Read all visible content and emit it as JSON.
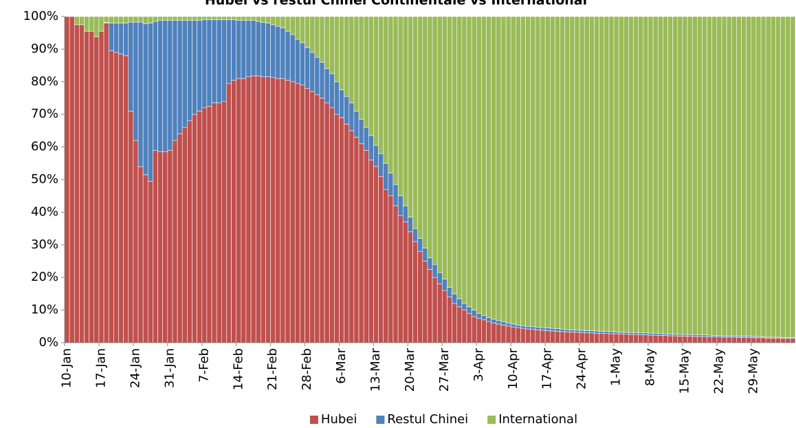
{
  "chart_data": {
    "type": "stacked_bar_100",
    "title": "Hubei vs restul Chinei Continentale vs International",
    "categories": [
      "10-Jan",
      null,
      null,
      null,
      null,
      null,
      null,
      "17-Jan",
      null,
      null,
      null,
      null,
      null,
      null,
      "24-Jan",
      null,
      null,
      null,
      null,
      null,
      null,
      "31-Jan",
      null,
      null,
      null,
      null,
      null,
      null,
      "7-Feb",
      null,
      null,
      null,
      null,
      null,
      null,
      "14-Feb",
      null,
      null,
      null,
      null,
      null,
      null,
      "21-Feb",
      null,
      null,
      null,
      null,
      null,
      null,
      "28-Feb",
      null,
      null,
      null,
      null,
      null,
      null,
      "6-Mar",
      null,
      null,
      null,
      null,
      null,
      null,
      "13-Mar",
      null,
      null,
      null,
      null,
      null,
      null,
      "20-Mar",
      null,
      null,
      null,
      null,
      null,
      null,
      "27-Mar",
      null,
      null,
      null,
      null,
      null,
      null,
      "3-Apr",
      null,
      null,
      null,
      null,
      null,
      null,
      "10-Apr",
      null,
      null,
      null,
      null,
      null,
      null,
      "17-Apr",
      null,
      null,
      null,
      null,
      null,
      null,
      "24-Apr",
      null,
      null,
      null,
      null,
      null,
      null,
      "1-May",
      null,
      null,
      null,
      null,
      null,
      null,
      "8-May",
      null,
      null,
      null,
      null,
      null,
      null,
      "15-May",
      null,
      null,
      null,
      null,
      null,
      null,
      "22-May",
      null,
      null,
      null,
      null,
      null,
      null,
      "29-May",
      null,
      null,
      null,
      null,
      null,
      null,
      null,
      null
    ],
    "series": [
      {
        "name": "Hubei",
        "color": "#c0504d",
        "values": [
          100,
          100,
          97.5,
          97.5,
          95.5,
          95.5,
          93.8,
          95.5,
          98,
          89.5,
          89,
          88.5,
          88,
          71,
          62,
          54,
          51.5,
          49.5,
          59,
          58.5,
          58.5,
          59,
          62,
          64,
          66,
          68,
          70,
          71,
          72,
          72.5,
          73.5,
          73.5,
          74,
          79.5,
          80.5,
          81,
          81,
          81.5,
          81.8,
          81.8,
          81.5,
          81.5,
          81.3,
          81,
          81,
          80.5,
          80,
          79.5,
          79,
          78,
          77,
          76,
          75,
          73.5,
          72,
          70,
          69,
          67,
          65,
          63,
          61,
          59,
          56,
          54,
          51,
          47,
          45,
          42,
          39,
          37,
          34,
          31,
          28,
          25,
          22.5,
          20,
          18,
          16,
          14,
          12,
          11,
          10,
          9,
          8,
          7.5,
          7,
          6.5,
          6,
          5.7,
          5.4,
          5.1,
          4.8,
          4.6,
          4.4,
          4.2,
          4.1,
          3.9,
          3.8,
          3.7,
          3.6,
          3.5,
          3.4,
          3.3,
          3.2,
          3.2,
          3.1,
          3.0,
          3.0,
          2.9,
          2.8,
          2.8,
          2.7,
          2.7,
          2.6,
          2.6,
          2.5,
          2.5,
          2.4,
          2.4,
          2.3,
          2.3,
          2.2,
          2.2,
          2.1,
          2.1,
          2.0,
          2.0,
          2.0,
          1.9,
          1.9,
          1.9,
          1.8,
          1.8,
          1.8,
          1.7,
          1.7,
          1.7,
          1.6,
          1.6,
          1.6,
          1.5,
          1.5,
          1.5,
          1.4,
          1.4,
          1.4,
          1.3,
          1.3,
          1.3
        ]
      },
      {
        "name": "Restul Chinei",
        "color": "#4f81bd",
        "values": [
          0,
          0,
          0,
          0,
          0,
          0,
          0,
          0,
          0.2,
          8.5,
          9,
          9.5,
          10,
          27.3,
          36.3,
          44.3,
          46.3,
          48.5,
          39.5,
          40.3,
          40.3,
          39.8,
          36.8,
          34.8,
          32.8,
          30.8,
          28.8,
          27.8,
          27,
          26.5,
          25.5,
          25.5,
          25,
          19.5,
          18.5,
          17.8,
          17.8,
          17.3,
          17,
          16.7,
          16.7,
          16.5,
          16.2,
          16,
          15.5,
          15,
          14.5,
          13.5,
          13,
          12.5,
          12,
          11.5,
          11,
          10.5,
          10.5,
          10,
          8.5,
          8.5,
          8.5,
          8,
          7.5,
          7,
          7.5,
          6.5,
          7,
          8,
          7,
          6.5,
          6,
          5,
          4.5,
          4,
          4,
          4,
          3.5,
          4,
          3.5,
          3.5,
          3,
          3,
          2.5,
          2,
          2,
          2,
          1.5,
          1.3,
          1.2,
          1.2,
          1.1,
          1.0,
          0.9,
          0.9,
          0.8,
          0.8,
          0.8,
          0.8,
          0.8,
          0.8,
          0.8,
          0.8,
          0.8,
          0.8,
          0.7,
          0.7,
          0.7,
          0.7,
          0.7,
          0.7,
          0.7,
          0.7,
          0.7,
          0.7,
          0.6,
          0.6,
          0.6,
          0.6,
          0.6,
          0.6,
          0.6,
          0.6,
          0.6,
          0.6,
          0.5,
          0.5,
          0.5,
          0.5,
          0.5,
          0.5,
          0.5,
          0.5,
          0.5,
          0.5,
          0.4,
          0.4,
          0.4,
          0.4,
          0.4,
          0.4,
          0.4,
          0.4,
          0.4,
          0.4,
          0.3,
          0.3,
          0.3,
          0.3,
          0.3,
          0.3,
          0.3
        ]
      },
      {
        "name": "International",
        "color": "#9bbb59",
        "values": [
          0,
          0,
          2.5,
          2.5,
          4.5,
          4.5,
          6.2,
          4.5,
          1.8,
          2,
          2,
          2,
          2,
          1.7,
          1.7,
          1.7,
          2.2,
          2,
          1.5,
          1.2,
          1.2,
          1.2,
          1.2,
          1.2,
          1.2,
          1.2,
          1.2,
          1.2,
          1,
          1,
          1,
          1,
          1,
          1,
          1,
          1.2,
          1.2,
          1.2,
          1.2,
          1.5,
          1.8,
          2,
          2.5,
          3,
          3.5,
          4.5,
          5.5,
          7,
          8,
          9.5,
          11,
          12.5,
          14,
          16,
          17.5,
          20,
          22.5,
          24.5,
          26.5,
          29,
          31.5,
          34,
          36.5,
          39.5,
          42,
          45,
          48,
          51.5,
          55,
          58,
          61.5,
          65,
          68,
          71,
          74,
          76,
          78.5,
          80.5,
          83,
          85,
          86.5,
          88,
          89,
          90,
          91,
          91.7,
          92.3,
          92.8,
          93.2,
          93.6,
          94,
          94.3,
          94.6,
          94.8,
          95,
          95.1,
          95.3,
          95.4,
          95.5,
          95.6,
          95.7,
          95.8,
          96,
          96.1,
          96.1,
          96.2,
          96.3,
          96.3,
          96.4,
          96.5,
          96.5,
          96.6,
          96.7,
          96.8,
          96.8,
          96.9,
          96.9,
          97,
          97,
          97.1,
          97.1,
          97.2,
          97.3,
          97.4,
          97.4,
          97.5,
          97.5,
          97.5,
          97.6,
          97.6,
          97.6,
          97.7,
          97.8,
          97.8,
          97.9,
          97.9,
          97.9,
          98,
          98,
          98,
          98.1,
          98.1,
          98.2,
          98.3,
          98.3,
          98.3,
          98.4,
          98.4,
          98.4
        ]
      }
    ],
    "ylim": [
      0,
      100
    ],
    "yticks": [
      {
        "value": 0,
        "label": "0%"
      },
      {
        "value": 10,
        "label": "10%"
      },
      {
        "value": 20,
        "label": "20%"
      },
      {
        "value": 30,
        "label": "30%"
      },
      {
        "value": 40,
        "label": "40%"
      },
      {
        "value": 50,
        "label": "50%"
      },
      {
        "value": 60,
        "label": "60%"
      },
      {
        "value": 70,
        "label": "70%"
      },
      {
        "value": 80,
        "label": "80%"
      },
      {
        "value": 90,
        "label": "90%"
      },
      {
        "value": 100,
        "label": "100%"
      }
    ],
    "legend": "bottom",
    "grid": false
  }
}
